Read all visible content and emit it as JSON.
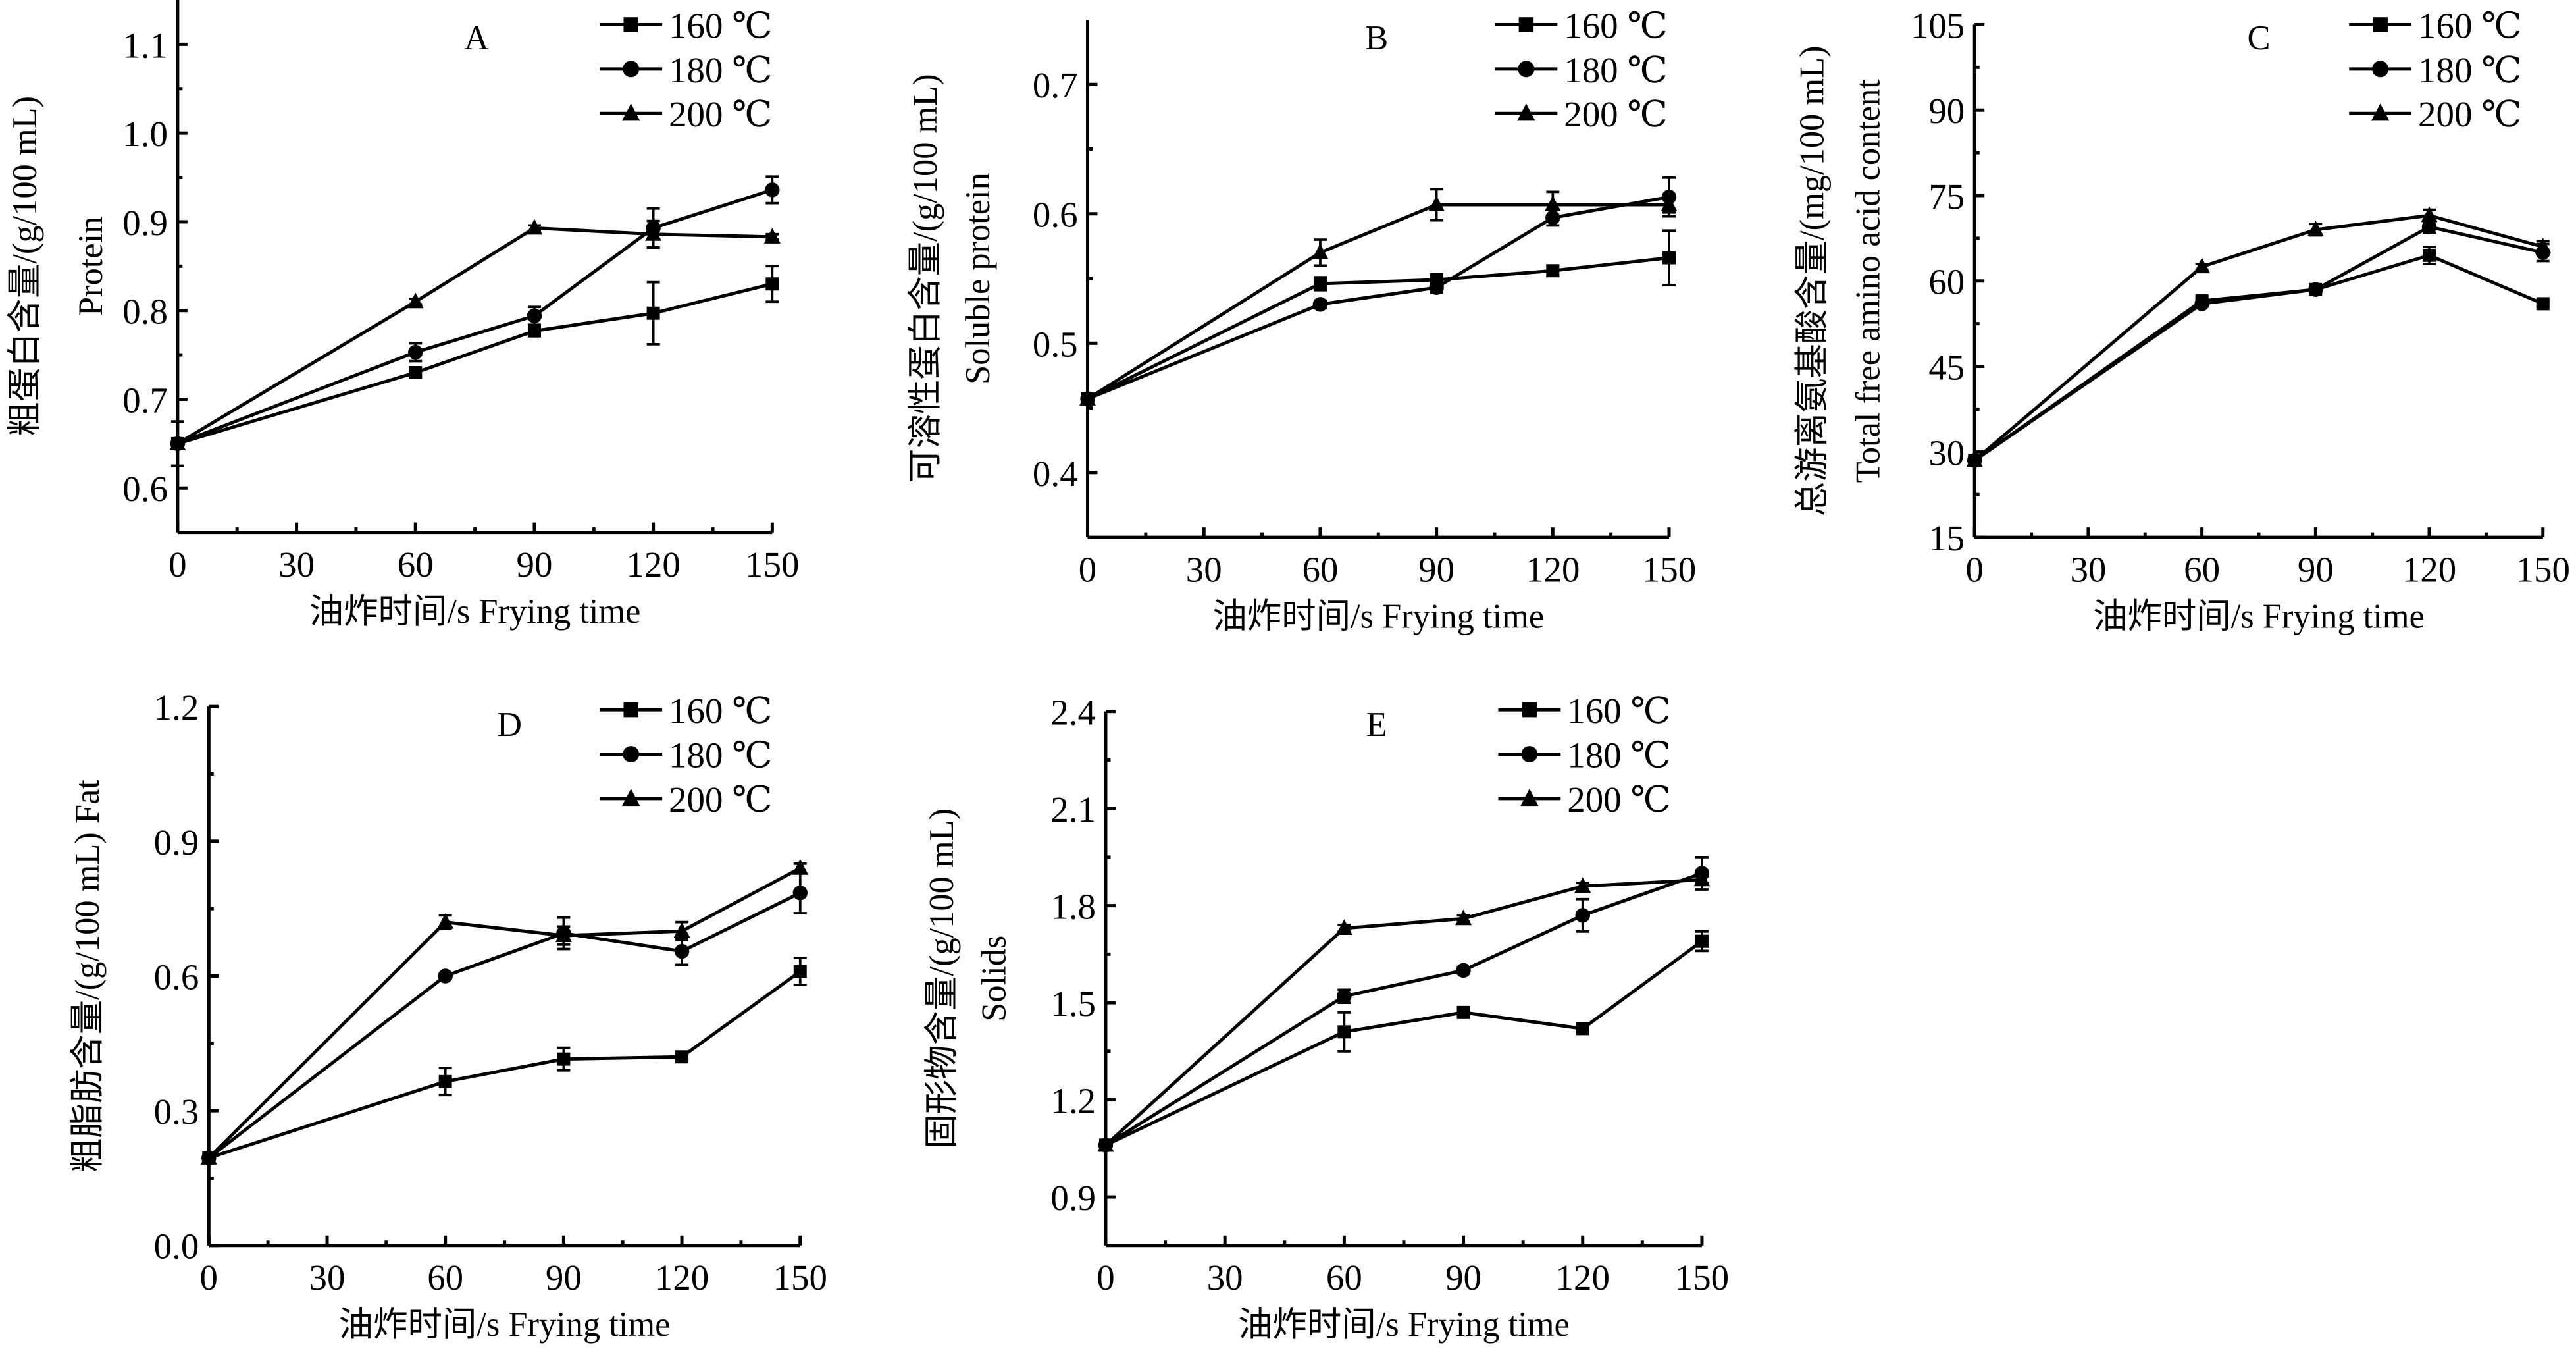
{
  "legend_labels": [
    "160 ℃",
    "180 ℃",
    "200 ℃"
  ],
  "marker_shapes": [
    "square",
    "circle",
    "triangle"
  ],
  "color": "#000000",
  "chart_data": [
    {
      "panel": "A",
      "type": "line",
      "x": [
        0,
        60,
        90,
        120,
        150
      ],
      "xticks": [
        0,
        30,
        60,
        90,
        120,
        150
      ],
      "xlim": [
        0,
        150
      ],
      "ylim": [
        0.55,
        1.15
      ],
      "yticks": [
        0.6,
        0.7,
        0.8,
        0.9,
        1.0,
        1.1
      ],
      "ydec": 1,
      "xlabel": "油炸时间/s Frying time",
      "ylabel": [
        "粗蛋白含量/(g/100 mL)",
        "Protein"
      ],
      "series": [
        {
          "name": "160 ℃",
          "values": [
            0.65,
            0.73,
            0.777,
            0.797,
            0.83
          ],
          "err": [
            0,
            0.005,
            0.005,
            0.035,
            0.02
          ]
        },
        {
          "name": "180 ℃",
          "values": [
            0.65,
            0.753,
            0.794,
            0.893,
            0.936
          ],
          "err": [
            0,
            0.01,
            0.01,
            0.022,
            0.015
          ]
        },
        {
          "name": "200 ℃",
          "values": [
            0.65,
            0.81,
            0.893,
            0.886,
            0.883
          ],
          "err": [
            0.025,
            0.003,
            0.003,
            0.015,
            0.003
          ]
        }
      ]
    },
    {
      "panel": "B",
      "type": "line",
      "x": [
        0,
        60,
        90,
        120,
        150
      ],
      "xticks": [
        0,
        30,
        60,
        90,
        120,
        150
      ],
      "xlim": [
        0,
        150
      ],
      "ylim": [
        0.35,
        0.75
      ],
      "yticks": [
        0.4,
        0.5,
        0.6,
        0.7
      ],
      "ydec": 1,
      "xlabel": "油炸时间/s Frying time",
      "ylabel": [
        "可溶性蛋白含量/(g/100 mL)",
        "Soluble protein"
      ],
      "series": [
        {
          "name": "160 ℃",
          "values": [
            0.457,
            0.546,
            0.549,
            0.556,
            0.566
          ],
          "err": [
            0,
            0.005,
            0.004,
            0.004,
            0.021
          ]
        },
        {
          "name": "180 ℃",
          "values": [
            0.457,
            0.53,
            0.543,
            0.597,
            0.613
          ],
          "err": [
            0,
            0.003,
            0.004,
            0.006,
            0.015
          ]
        },
        {
          "name": "200 ℃",
          "values": [
            0.457,
            0.57,
            0.607,
            0.607,
            0.607
          ],
          "err": [
            0,
            0.01,
            0.012,
            0.01,
            0.006
          ]
        }
      ]
    },
    {
      "panel": "C",
      "type": "line",
      "x": [
        0,
        60,
        90,
        120,
        150
      ],
      "xticks": [
        0,
        30,
        60,
        90,
        120,
        150
      ],
      "xlim": [
        0,
        150
      ],
      "ylim": [
        15,
        105
      ],
      "yticks": [
        15,
        30,
        45,
        60,
        75,
        90,
        105
      ],
      "ydec": 0,
      "xlabel": "油炸时间/s Frying time",
      "ylabel": [
        "总游离氨基酸含量/(mg/100 mL)",
        "Total free amino acid content"
      ],
      "series": [
        {
          "name": "160 ℃",
          "values": [
            28.5,
            56.5,
            58.5,
            64.5,
            56
          ],
          "err": [
            0.5,
            0.5,
            0.5,
            1.5,
            0.5
          ]
        },
        {
          "name": "180 ℃",
          "values": [
            28.5,
            56,
            58.5,
            69.5,
            65
          ],
          "err": [
            0.5,
            0.5,
            0.5,
            1,
            1.5
          ]
        },
        {
          "name": "200 ℃",
          "values": [
            28.5,
            62.5,
            69,
            71.5,
            66
          ],
          "err": [
            0.5,
            0.5,
            1,
            1,
            1
          ]
        }
      ]
    },
    {
      "panel": "D",
      "type": "line",
      "x": [
        0,
        60,
        90,
        120,
        150
      ],
      "xticks": [
        0,
        30,
        60,
        90,
        120,
        150
      ],
      "xlim": [
        0,
        150
      ],
      "ylim": [
        0,
        1.2
      ],
      "yticks": [
        0.0,
        0.3,
        0.6,
        0.9,
        1.2
      ],
      "ydec": 1,
      "xlabel": "油炸时间/s Frying time",
      "ylabel": [
        "粗脂肪含量/(g/100 mL)  Fat"
      ],
      "series": [
        {
          "name": "160 ℃",
          "values": [
            0.195,
            0.365,
            0.415,
            0.42,
            0.61
          ],
          "err": [
            0,
            0.03,
            0.025,
            0.005,
            0.03
          ]
        },
        {
          "name": "180 ℃",
          "values": [
            0.195,
            0.6,
            0.695,
            0.655,
            0.785
          ],
          "err": [
            0,
            0.005,
            0.035,
            0.03,
            0.045
          ]
        },
        {
          "name": "200 ℃",
          "values": [
            0.195,
            0.72,
            0.69,
            0.7,
            0.84
          ],
          "err": [
            0,
            0.015,
            0.02,
            0.02,
            0.01
          ]
        }
      ]
    },
    {
      "panel": "E",
      "type": "line",
      "x": [
        0,
        60,
        90,
        120,
        150
      ],
      "xticks": [
        0,
        30,
        60,
        90,
        120,
        150
      ],
      "xlim": [
        0,
        150
      ],
      "ylim": [
        0.75,
        2.4
      ],
      "yticks": [
        0.9,
        1.2,
        1.5,
        1.8,
        2.1,
        2.4
      ],
      "ydec": 1,
      "xlabel": "油炸时间/s Frying time",
      "ylabel": [
        "固形物含量/(g/100 mL)",
        "Solids"
      ],
      "series": [
        {
          "name": "160 ℃",
          "values": [
            1.06,
            1.41,
            1.47,
            1.42,
            1.69
          ],
          "err": [
            0,
            0.06,
            0.01,
            0.01,
            0.03
          ]
        },
        {
          "name": "180 ℃",
          "values": [
            1.06,
            1.52,
            1.6,
            1.77,
            1.9
          ],
          "err": [
            0,
            0.02,
            0.01,
            0.05,
            0.05
          ]
        },
        {
          "name": "200 ℃",
          "values": [
            1.06,
            1.73,
            1.76,
            1.86,
            1.88
          ],
          "err": [
            0,
            0.01,
            0.01,
            0.01,
            0.01
          ]
        }
      ]
    }
  ]
}
